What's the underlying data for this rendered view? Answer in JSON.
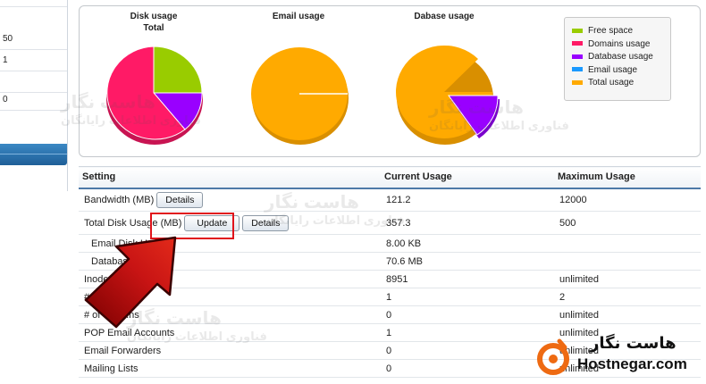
{
  "left_panel": {
    "values": [
      "50",
      "1",
      "",
      "0"
    ]
  },
  "charts": [
    {
      "title": "Disk usage",
      "subtitle": "Total"
    },
    {
      "title": "Email usage",
      "subtitle": ""
    },
    {
      "title": "Dabase usage",
      "subtitle": ""
    }
  ],
  "chart_data": [
    {
      "type": "pie",
      "title": "Disk usage",
      "subtitle": "Total",
      "labels": [
        "Free space",
        "Domains usage",
        "Database usage",
        "Total usage"
      ],
      "values": [
        30,
        58,
        12,
        0
      ]
    },
    {
      "type": "pie",
      "title": "Email usage",
      "labels": [
        "Total usage",
        "Email usage"
      ],
      "values": [
        100,
        0
      ]
    },
    {
      "type": "pie",
      "title": "Dabase usage",
      "labels": [
        "Total usage",
        "Database usage"
      ],
      "values": [
        87,
        13
      ]
    }
  ],
  "legend": [
    {
      "label": "Free space",
      "color": "#99cc00"
    },
    {
      "label": "Domains usage",
      "color": "#ff1a66"
    },
    {
      "label": "Database usage",
      "color": "#9900ff"
    },
    {
      "label": "Email usage",
      "color": "#1a99ff"
    },
    {
      "label": "Total usage",
      "color": "#ffaa00"
    }
  ],
  "table": {
    "headers": {
      "setting": "Setting",
      "current": "Current Usage",
      "max": "Maximum Usage"
    },
    "rows": [
      {
        "label": "Bandwidth (MB)",
        "current": "121.2",
        "max": "12000",
        "buttons": [
          "Details"
        ]
      },
      {
        "label": "Total Disk Usage (MB)",
        "current": "357.3",
        "max": "500",
        "buttons": [
          "Update",
          "Details"
        ]
      },
      {
        "label": "Email Disk Usage",
        "current": "8.00 KB",
        "max": "",
        "sub": true
      },
      {
        "label": "Database",
        "current": "70.6 MB",
        "max": "",
        "sub": true
      },
      {
        "label": "Inodes",
        "current": "8951",
        "max": "unlimited"
      },
      {
        "label": "# of",
        "current": "1",
        "max": "2"
      },
      {
        "label": "# of Sub...ns",
        "current": "0",
        "max": "unlimited"
      },
      {
        "label": "POP Email Accounts",
        "current": "1",
        "max": "unlimited"
      },
      {
        "label": "Email Forwarders",
        "current": "0",
        "max": "unlimited"
      },
      {
        "label": "Mailing Lists",
        "current": "0",
        "max": "unlimited"
      }
    ]
  },
  "brand": {
    "name_fa": "هاست نگار",
    "name_en": "Hostnegar.com"
  },
  "watermark": {
    "line1": "هاست نگار",
    "line2": "فناوری اطلاعات رایانگان"
  }
}
